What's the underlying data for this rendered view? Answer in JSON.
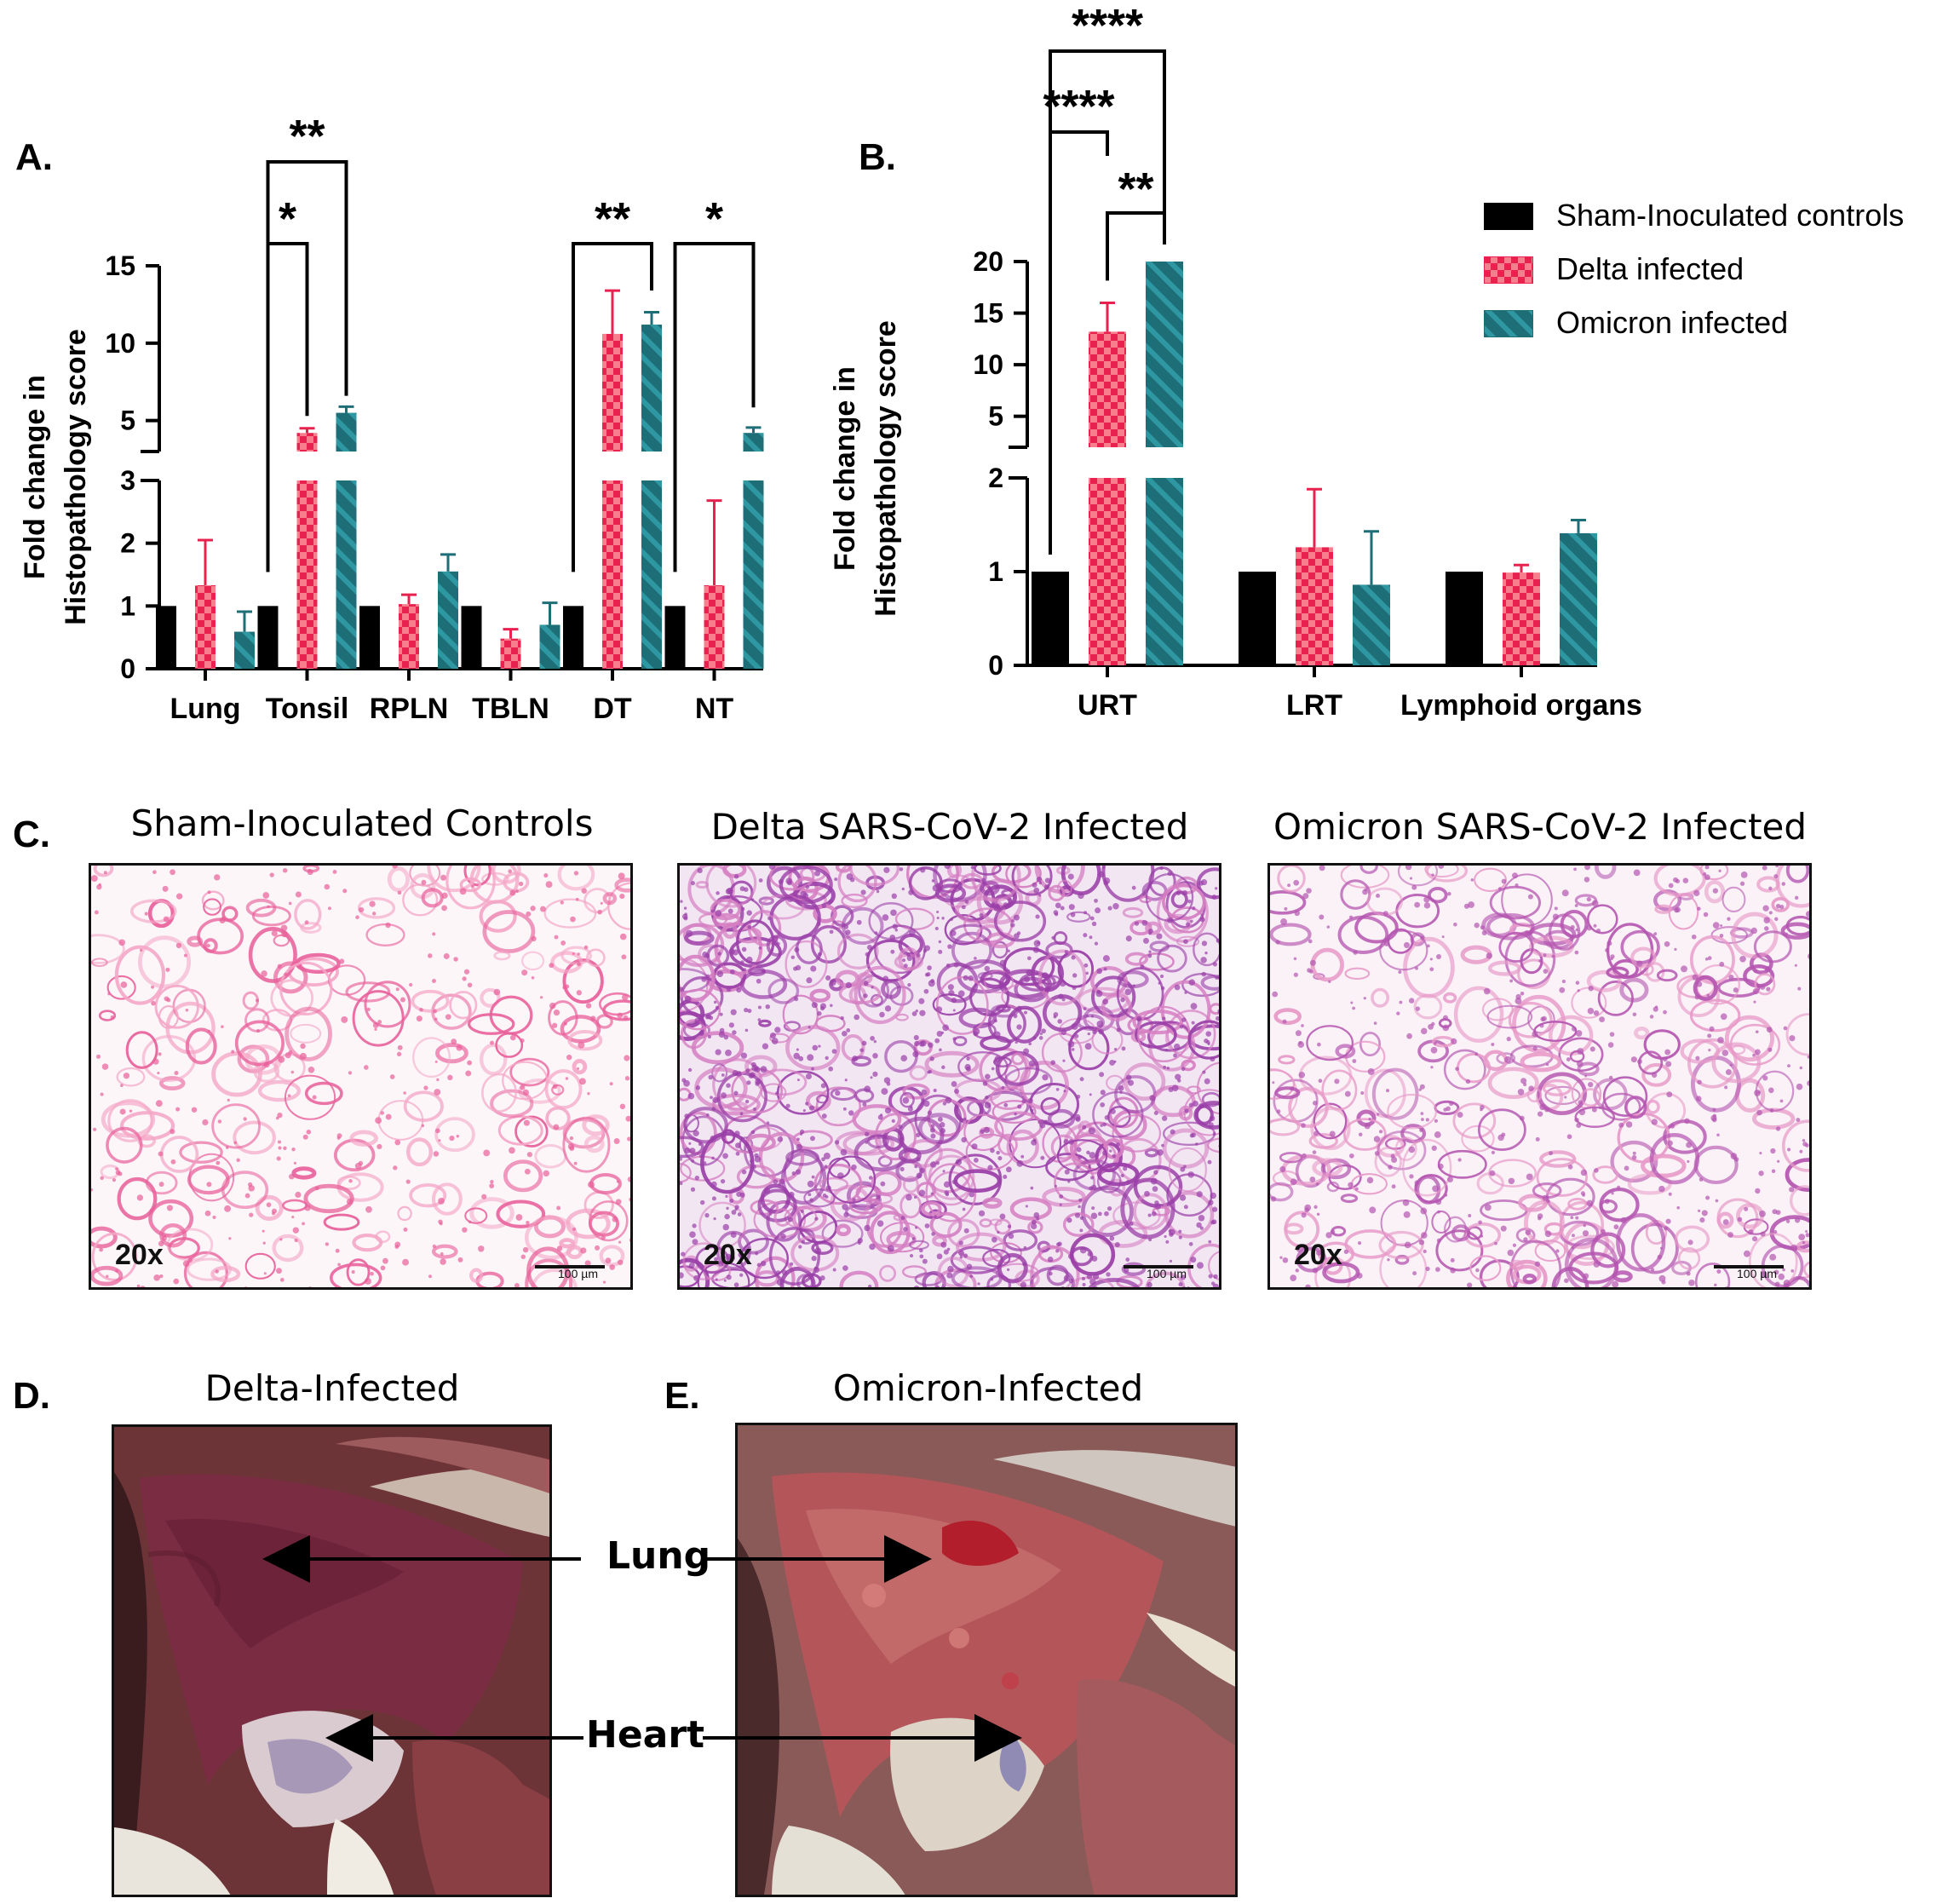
{
  "panels": {
    "A": "A.",
    "B": "B.",
    "C": "C.",
    "D": "D.",
    "E": "E."
  },
  "legend": {
    "items": [
      {
        "label": "Sham-Inoculated controls",
        "pattern": "solid"
      },
      {
        "label": "Delta infected",
        "pattern": "checker"
      },
      {
        "label": "Omicron infected",
        "pattern": "stripe"
      }
    ]
  },
  "colors": {
    "sham": "#000000",
    "delta_red": "#e8214f",
    "delta_pink": "#f77f8d",
    "omicron_dark": "#1d6e77",
    "omicron_light": "#2e97a2"
  },
  "chart_data": [
    {
      "type": "bar",
      "panel": "A",
      "ylabel": "Fold change in Histopathology score",
      "y_axis_break": {
        "lower": [
          0,
          3
        ],
        "upper": [
          3,
          15
        ]
      },
      "lower_ticks": [
        "0",
        "1",
        "2",
        "3"
      ],
      "upper_ticks": [
        "5",
        "10",
        "15"
      ],
      "categories": [
        "Lung",
        "Tonsil",
        "RPLN",
        "TBLN",
        "DT",
        "NT"
      ],
      "series": [
        {
          "name": "Sham-Inoculated controls",
          "values": [
            1,
            1,
            1,
            1,
            1,
            1
          ],
          "errors": [
            0,
            0,
            0,
            0,
            0,
            0
          ]
        },
        {
          "name": "Delta infected",
          "values": [
            1.33,
            4.2,
            1.03,
            0.48,
            10.6,
            1.33
          ],
          "errors": [
            0.72,
            0.3,
            0.15,
            0.15,
            2.8,
            1.35
          ]
        },
        {
          "name": "Omicron infected",
          "values": [
            0.59,
            5.5,
            1.55,
            0.7,
            11.2,
            4.2
          ],
          "errors": [
            0.32,
            0.4,
            0.27,
            0.35,
            0.8,
            0.35
          ]
        }
      ],
      "significance": [
        {
          "label": "**",
          "from": "Tonsil:sham",
          "to": "Tonsil:omicron"
        },
        {
          "label": "*",
          "from": "Tonsil:sham",
          "to": "Tonsil:delta"
        },
        {
          "label": "**",
          "from": "DT:sham",
          "to": "DT:omicron"
        },
        {
          "label": "*",
          "from": "NT:sham",
          "to": "NT:omicron"
        }
      ]
    },
    {
      "type": "bar",
      "panel": "B",
      "ylabel": "Fold change in Histopathology score",
      "y_axis_break": {
        "lower": [
          0,
          2
        ],
        "upper": [
          2,
          20
        ]
      },
      "lower_ticks": [
        "0",
        "1",
        "2"
      ],
      "upper_ticks": [
        "5",
        "10",
        "15",
        "20"
      ],
      "categories": [
        "URT",
        "LRT",
        "Lymphoid organs"
      ],
      "series": [
        {
          "name": "Sham-Inoculated controls",
          "values": [
            1,
            1,
            1
          ],
          "errors": [
            0,
            0,
            0
          ]
        },
        {
          "name": "Delta infected",
          "values": [
            13.2,
            1.26,
            0.99
          ],
          "errors": [
            2.8,
            0.62,
            0.08
          ]
        },
        {
          "name": "Omicron infected",
          "values": [
            20,
            0.86,
            1.41
          ],
          "errors": [
            0,
            0.57,
            0.14
          ]
        }
      ],
      "significance": [
        {
          "label": "****",
          "from": "URT:sham",
          "to": "URT:omicron"
        },
        {
          "label": "****",
          "from": "URT:sham",
          "to": "URT:delta"
        },
        {
          "label": "**",
          "from": "URT:delta",
          "to": "URT:omicron"
        }
      ]
    }
  ],
  "micrographs": [
    {
      "title": "Sham-Inoculated Controls",
      "mag": "20x",
      "scale": "100 µm"
    },
    {
      "title": "Delta SARS-CoV-2 Infected",
      "mag": "20x",
      "scale": "100 µm"
    },
    {
      "title": "Omicron SARS-CoV-2 Infected",
      "mag": "20x",
      "scale": "100 µm"
    }
  ],
  "photos": [
    {
      "title": "Delta-Infected"
    },
    {
      "title": "Omicron-Infected"
    }
  ],
  "organ_labels": {
    "lung": "Lung",
    "heart": "Heart"
  }
}
